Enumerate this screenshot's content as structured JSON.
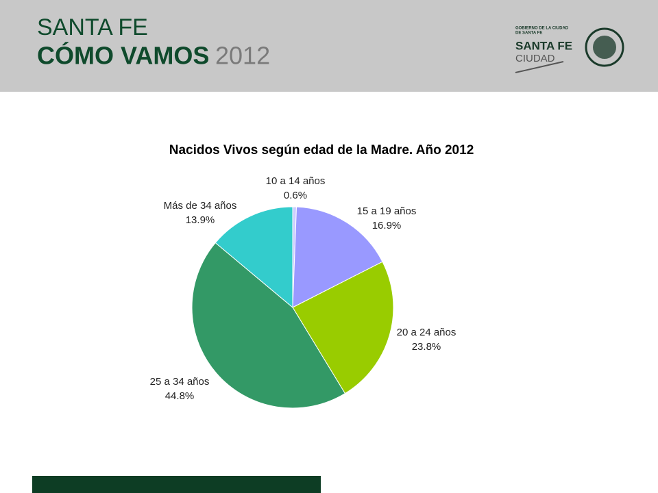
{
  "header": {
    "brand_line1": "SANTA FE",
    "brand_line2": "CÓMO VAMOS",
    "brand_year": "2012",
    "logo_small": "GOBIERNO DE LA CIUDAD",
    "logo_small2": "DE SANTA FE",
    "logo_main": "SANTA FE",
    "logo_sub": "CIUDAD"
  },
  "chart_data": {
    "type": "pie",
    "title": "Nacidos Vivos según edad de la Madre. Año 2012",
    "categories": [
      "10 a 14 años",
      "15 a 19 años",
      "20 a 24 años",
      "25 a 34 años",
      "Más de 34 años"
    ],
    "values": [
      0.6,
      16.9,
      23.8,
      44.8,
      13.9
    ],
    "value_labels": [
      "0.6%",
      "16.9%",
      "23.8%",
      "44.8%",
      "13.9%"
    ],
    "colors": [
      "#ccccff",
      "#9999ff",
      "#99cc00",
      "#339966",
      "#33cccc"
    ]
  }
}
